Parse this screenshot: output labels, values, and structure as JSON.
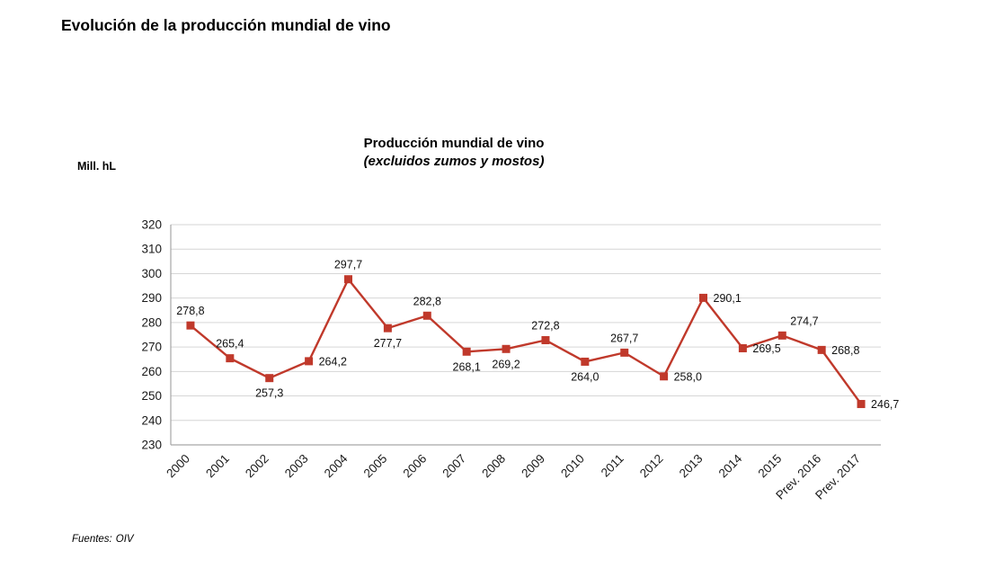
{
  "page": {
    "title": "Evolución de la producción mundial de vino",
    "sources_label": "Fuentes:",
    "sources_value": "OIV"
  },
  "chart_data": {
    "type": "line",
    "title": "Producción mundial de vino",
    "subtitle": "(excluidos zumos y mostos)",
    "unit_label": "Mill. hL",
    "categories": [
      "2000",
      "2001",
      "2002",
      "2003",
      "2004",
      "2005",
      "2006",
      "2007",
      "2008",
      "2009",
      "2010",
      "2011",
      "2012",
      "2013",
      "2014",
      "2015",
      "Prev. 2016",
      "Prev. 2017"
    ],
    "values": [
      278.8,
      265.4,
      257.3,
      264.2,
      297.7,
      277.7,
      282.8,
      268.1,
      269.2,
      272.8,
      264.0,
      267.7,
      258.0,
      290.1,
      269.5,
      274.7,
      268.8,
      246.7
    ],
    "value_labels": [
      "278,8",
      "265,4",
      "257,3",
      "264,2",
      "297,7",
      "277,7",
      "282,8",
      "268,1",
      "269,2",
      "272,8",
      "264,0",
      "267,7",
      "258,0",
      "290,1",
      "269,5",
      "274,7",
      "268,8",
      "246,7"
    ],
    "label_positions": [
      "above",
      "above",
      "below",
      "right",
      "above",
      "below",
      "above",
      "below",
      "below",
      "above",
      "below",
      "above",
      "right",
      "right",
      "right",
      "above-right",
      "right",
      "right"
    ],
    "ylim": [
      230,
      320
    ],
    "ytick_step": 10,
    "grid": true,
    "legend": "none",
    "line_color": "#c0392b",
    "marker": "square",
    "xlabel": "",
    "ylabel": "Mill. hL"
  }
}
